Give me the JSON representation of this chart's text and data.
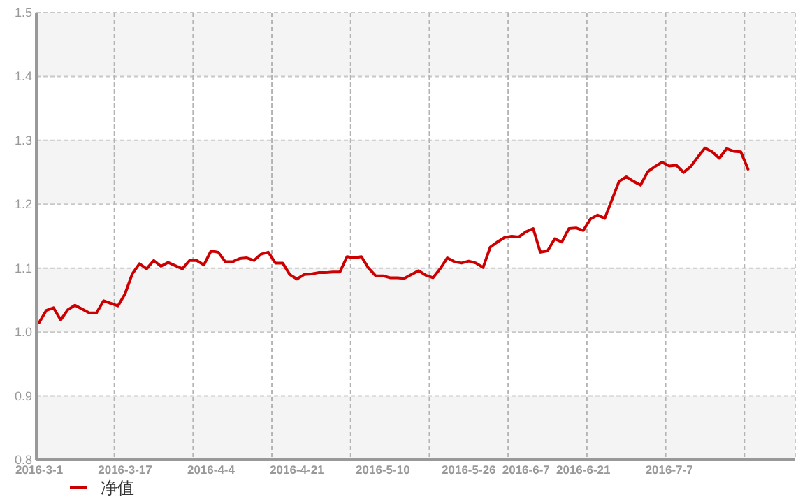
{
  "chart_data": {
    "type": "line",
    "categories": [
      "2016-3-1",
      null,
      null,
      null,
      null,
      null,
      null,
      null,
      null,
      null,
      null,
      null,
      "2016-3-17",
      null,
      null,
      null,
      null,
      null,
      null,
      null,
      null,
      null,
      null,
      null,
      "2016-4-4",
      null,
      null,
      null,
      null,
      null,
      null,
      null,
      null,
      null,
      null,
      null,
      "2016-4-21",
      null,
      null,
      null,
      null,
      null,
      null,
      null,
      null,
      null,
      null,
      null,
      "2016-5-10",
      null,
      null,
      null,
      null,
      null,
      null,
      null,
      null,
      null,
      null,
      null,
      "2016-5-26",
      null,
      null,
      null,
      null,
      null,
      null,
      null,
      "2016-6-7",
      null,
      null,
      null,
      null,
      null,
      null,
      null,
      "2016-6-21",
      null,
      null,
      null,
      null,
      null,
      null,
      null,
      null,
      null,
      null,
      null,
      "2016-7-7",
      null,
      null,
      null,
      null,
      null,
      null,
      null,
      null,
      null,
      null,
      null
    ],
    "series": [
      {
        "name": "净值",
        "color": "#cc0000",
        "values": [
          1.015,
          1.034,
          1.038,
          1.019,
          1.035,
          1.042,
          1.036,
          1.03,
          1.03,
          1.049,
          1.045,
          1.041,
          1.06,
          1.091,
          1.107,
          1.099,
          1.112,
          1.103,
          1.109,
          1.104,
          1.099,
          1.112,
          1.112,
          1.105,
          1.127,
          1.125,
          1.11,
          1.11,
          1.115,
          1.116,
          1.112,
          1.122,
          1.125,
          1.108,
          1.108,
          1.09,
          1.083,
          1.09,
          1.091,
          1.093,
          1.093,
          1.094,
          1.094,
          1.118,
          1.116,
          1.118,
          1.1,
          1.088,
          1.088,
          1.085,
          1.085,
          1.084,
          1.09,
          1.096,
          1.089,
          1.085,
          1.099,
          1.116,
          1.11,
          1.108,
          1.111,
          1.108,
          1.101,
          1.133,
          1.141,
          1.148,
          1.15,
          1.149,
          1.157,
          1.162,
          1.125,
          1.127,
          1.146,
          1.141,
          1.162,
          1.163,
          1.159,
          1.177,
          1.183,
          1.178,
          1.207,
          1.236,
          1.243,
          1.236,
          1.23,
          1.251,
          1.259,
          1.266,
          1.26,
          1.261,
          1.25,
          1.259,
          1.274,
          1.288,
          1.282,
          1.272,
          1.287,
          1.283,
          1.282,
          1.255
        ]
      }
    ],
    "ylim": [
      0.8,
      1.5
    ],
    "yticks": [
      0.8,
      0.9,
      {
        "value": 1,
        "label": "1.0"
      },
      1.1,
      1.2,
      1.3,
      1.4,
      1.5
    ],
    "grid": true,
    "legend": "bottom left",
    "line_style": "solid",
    "marker": "none"
  }
}
